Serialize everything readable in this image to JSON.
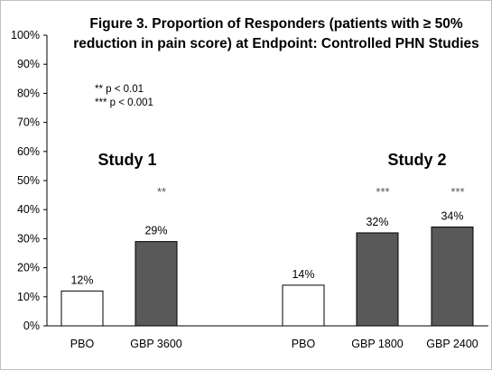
{
  "chart_data": {
    "type": "bar",
    "title_lines": [
      "Figure 3. Proportion of Responders (patients with ≥ 50%",
      "reduction in pain score) at Endpoint: Controlled PHN Studies"
    ],
    "categories": [
      "PBO",
      "GBP 3600",
      "PBO",
      "GBP 1800",
      "GBP 2400"
    ],
    "values": [
      12,
      29,
      14,
      32,
      34
    ],
    "data_labels": [
      "12%",
      "29%",
      "14%",
      "32%",
      "34%"
    ],
    "significance": [
      "",
      "**",
      "",
      "***",
      "***"
    ],
    "bar_colors": [
      "#ffffff",
      "#595959",
      "#ffffff",
      "#595959",
      "#595959"
    ],
    "ylim": [
      0,
      100
    ],
    "y_ticks": [
      "0%",
      "10%",
      "20%",
      "30%",
      "40%",
      "50%",
      "60%",
      "70%",
      "80%",
      "90%",
      "100%"
    ],
    "groups": [
      {
        "label": "Study  1"
      },
      {
        "label": "Study 2"
      }
    ],
    "notes": [
      "** p < 0.01",
      "*** p < 0.001"
    ],
    "grid": false,
    "legend": "none"
  }
}
